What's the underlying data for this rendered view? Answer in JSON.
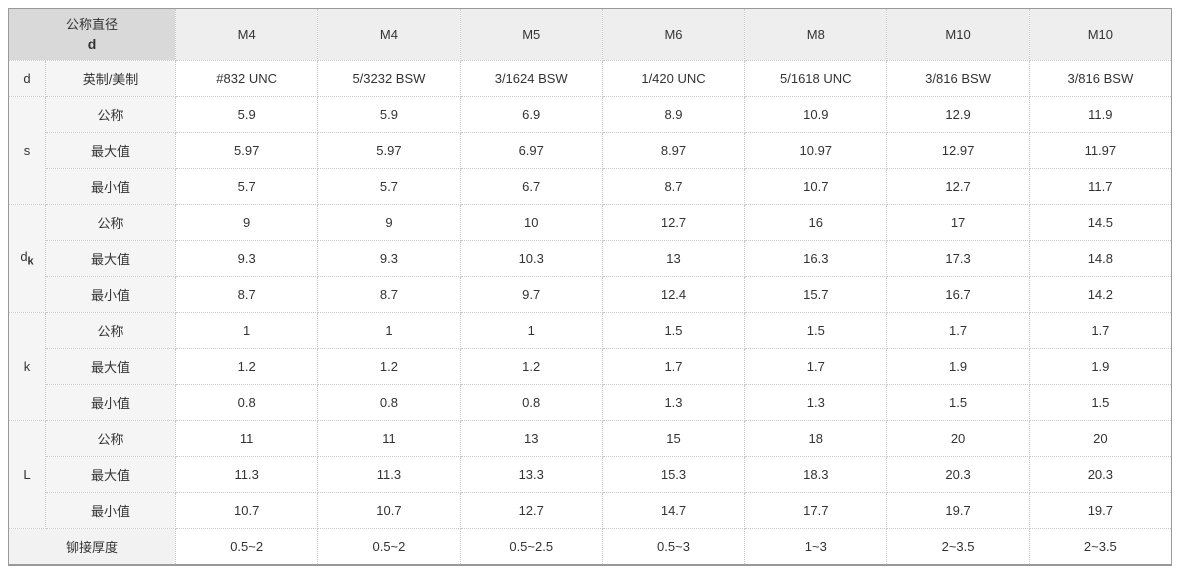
{
  "table": {
    "corner_header": {
      "line1": "公称直径",
      "line2": "d"
    },
    "size_headers": [
      "M4",
      "M4",
      "M5",
      "M6",
      "M8",
      "M10",
      "M10"
    ],
    "thread_row": {
      "group": "d",
      "label": "英制/美制",
      "values": [
        "#832 UNC",
        "5/3232 BSW",
        "3/1624 BSW",
        "1/420 UNC",
        "5/1618 UNC",
        "3/816 BSW",
        "3/816 BSW"
      ]
    },
    "groups": [
      {
        "name": "s",
        "sub": "",
        "rows": [
          {
            "label": "公称",
            "values": [
              "5.9",
              "5.9",
              "6.9",
              "8.9",
              "10.9",
              "12.9",
              "11.9"
            ]
          },
          {
            "label": "最大值",
            "values": [
              "5.97",
              "5.97",
              "6.97",
              "8.97",
              "10.97",
              "12.97",
              "11.97"
            ]
          },
          {
            "label": "最小值",
            "values": [
              "5.7",
              "5.7",
              "6.7",
              "8.7",
              "10.7",
              "12.7",
              "11.7"
            ]
          }
        ]
      },
      {
        "name": "d",
        "sub": "k",
        "rows": [
          {
            "label": "公称",
            "values": [
              "9",
              "9",
              "10",
              "12.7",
              "16",
              "17",
              "14.5"
            ]
          },
          {
            "label": "最大值",
            "values": [
              "9.3",
              "9.3",
              "10.3",
              "13",
              "16.3",
              "17.3",
              "14.8"
            ]
          },
          {
            "label": "最小值",
            "values": [
              "8.7",
              "8.7",
              "9.7",
              "12.4",
              "15.7",
              "16.7",
              "14.2"
            ]
          }
        ]
      },
      {
        "name": "k",
        "sub": "",
        "rows": [
          {
            "label": "公称",
            "values": [
              "1",
              "1",
              "1",
              "1.5",
              "1.5",
              "1.7",
              "1.7"
            ]
          },
          {
            "label": "最大值",
            "values": [
              "1.2",
              "1.2",
              "1.2",
              "1.7",
              "1.7",
              "1.9",
              "1.9"
            ]
          },
          {
            "label": "最小值",
            "values": [
              "0.8",
              "0.8",
              "0.8",
              "1.3",
              "1.3",
              "1.5",
              "1.5"
            ]
          }
        ]
      },
      {
        "name": "L",
        "sub": "",
        "rows": [
          {
            "label": "公称",
            "values": [
              "11",
              "11",
              "13",
              "15",
              "18",
              "20",
              "20"
            ]
          },
          {
            "label": "最大值",
            "values": [
              "11.3",
              "11.3",
              "13.3",
              "15.3",
              "18.3",
              "20.3",
              "20.3"
            ]
          },
          {
            "label": "最小值",
            "values": [
              "10.7",
              "10.7",
              "12.7",
              "14.7",
              "17.7",
              "19.7",
              "19.7"
            ]
          }
        ]
      }
    ],
    "footer_row": {
      "label": "铆接厚度",
      "values": [
        "0.5~2",
        "0.5~2",
        "0.5~2.5",
        "0.5~3",
        "1~3",
        "2~3.5",
        "2~3.5"
      ]
    },
    "colors": {
      "header_blue": "#1259a6",
      "corner_bg": "#d9d9d9",
      "size_header_bg": "#eeeeee",
      "label_bg": "#f5f5f5",
      "text": "#333333"
    }
  }
}
